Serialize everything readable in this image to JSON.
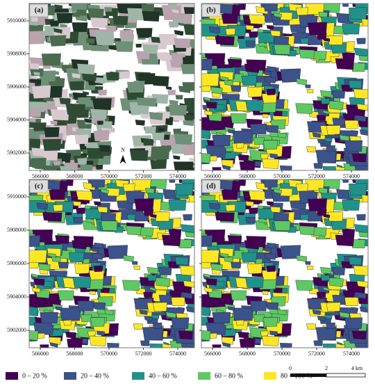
{
  "panels": [
    {
      "label": "(a)"
    },
    {
      "label": "(b)"
    },
    {
      "label": "(c)"
    },
    {
      "label": "(d)"
    }
  ],
  "imagery_colors": [
    "#1f3326",
    "#2e4a35",
    "#4a6b4f",
    "#b9a3ad",
    "#d8c9cf",
    "#6e8f78",
    "#9fb5a8"
  ],
  "y_ticks": [
    5910000,
    5908000,
    5906000,
    5904000,
    5902000
  ],
  "x_ticks": [
    566000,
    568000,
    570000,
    572000,
    574000
  ],
  "legend": [
    {
      "label": "0 – 20 %",
      "color": "#440154"
    },
    {
      "label": "20 – 40 %",
      "color": "#3b528b"
    },
    {
      "label": "40 – 60 %",
      "color": "#21918c"
    },
    {
      "label": "60 – 80 %",
      "color": "#5ec962"
    },
    {
      "label": "80 – 100 %",
      "color": "#fde725"
    }
  ],
  "scale_bar": {
    "labels": [
      "0",
      "2",
      "4 km"
    ]
  },
  "north_arrow": "N"
}
